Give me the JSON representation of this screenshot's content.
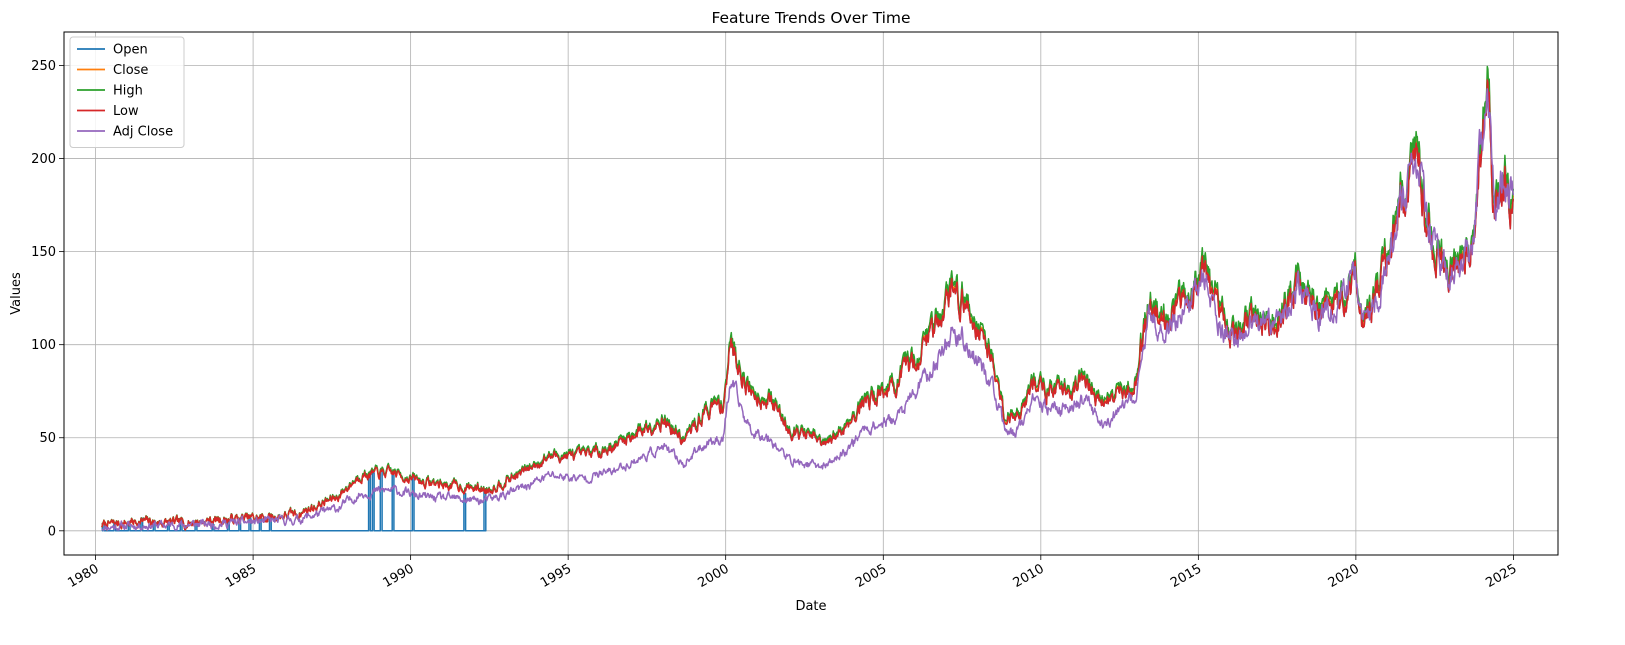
{
  "chart_data": {
    "type": "line",
    "title": "Feature Trends Over Time",
    "xlabel": "Date",
    "ylabel": "Values",
    "xlim": [
      "1979-01-01",
      "2026-06-01"
    ],
    "ylim": [
      -13,
      268
    ],
    "x_ticks": [
      "1980",
      "1985",
      "1990",
      "1995",
      "2000",
      "2005",
      "2010",
      "2015",
      "2020",
      "2025"
    ],
    "y_ticks": [
      0,
      50,
      100,
      150,
      200,
      250
    ],
    "grid": true,
    "legend_position": "top-left",
    "x_tick_rotation": 30,
    "series": [
      {
        "name": "Open",
        "color": "#1f77b4",
        "note_style": "mostly zero until 1992 with spikes to price level",
        "spike_dates": [
          "1980-03-20",
          "1980-08-01",
          "1981-01-15",
          "1981-06-10",
          "1981-11-01",
          "1982-04-15",
          "1982-09-10",
          "1983-03-01",
          "1983-09-15",
          "1984-03-10",
          "1984-07-20",
          "1984-11-15",
          "1985-03-15",
          "1985-07-10",
          "1988-09-01",
          "1988-10-15",
          "1989-01-15",
          "1989-06-01",
          "1990-01-20",
          "1991-09-10",
          "1992-05-01"
        ],
        "zero_until": "1992-05-01",
        "follows_series_after": "Low"
      },
      {
        "name": "Close",
        "color": "#ff7f0e",
        "follows_series": "Low"
      },
      {
        "name": "High",
        "color": "#2ca02c",
        "follows_series": "Low"
      },
      {
        "name": "Low",
        "color": "#d62728",
        "x": [
          "1980-03-17",
          "1981-06-01",
          "1982-08-01",
          "1984-01-01",
          "1985-06-01",
          "1986-06-01",
          "1987-09-01",
          "1988-06-01",
          "1989-06-01",
          "1990-06-01",
          "1991-06-01",
          "1992-06-01",
          "1993-06-01",
          "1994-06-01",
          "1995-06-01",
          "1996-06-01",
          "1997-06-01",
          "1998-01-01",
          "1998-09-01",
          "1999-06-01",
          "1999-12-01",
          "2000-03-01",
          "2000-10-01",
          "2001-06-01",
          "2002-01-01",
          "2002-10-01",
          "2003-03-01",
          "2003-10-01",
          "2004-06-01",
          "2005-06-01",
          "2006-03-01",
          "2006-10-01",
          "2007-03-01",
          "2007-10-01",
          "2008-06-01",
          "2008-11-01",
          "2009-03-01",
          "2009-10-01",
          "2010-06-01",
          "2011-06-01",
          "2011-12-01",
          "2012-06-01",
          "2013-01-01",
          "2013-06-01",
          "2014-01-01",
          "2014-06-01",
          "2015-03-01",
          "2015-09-01",
          "2016-03-01",
          "2016-10-01",
          "2017-06-01",
          "2018-03-01",
          "2018-10-01",
          "2019-06-01",
          "2020-01-01",
          "2020-03-20",
          "2020-10-01",
          "2021-06-01",
          "2022-01-01",
          "2022-04-01",
          "2022-10-01",
          "2023-04-01",
          "2023-10-01",
          "2024-03-01",
          "2024-06-01",
          "2024-09-01",
          "2024-12-31"
        ],
        "y": [
          3,
          5,
          4,
          6,
          7,
          9,
          18,
          30,
          31,
          26,
          24,
          22,
          30,
          40,
          40,
          45,
          55,
          60,
          48,
          65,
          68,
          100,
          75,
          70,
          55,
          50,
          45,
          55,
          70,
          78,
          95,
          115,
          130,
          118,
          95,
          62,
          60,
          78,
          75,
          80,
          68,
          72,
          80,
          120,
          115,
          120,
          140,
          115,
          105,
          115,
          110,
          130,
          120,
          120,
          140,
          110,
          130,
          175,
          195,
          165,
          140,
          140,
          160,
          245,
          170,
          190,
          175
        ]
      },
      {
        "name": "Adj Close",
        "color": "#9467bd",
        "x": [
          "1980-03-17",
          "1981-06-01",
          "1982-08-01",
          "1984-01-01",
          "1985-06-01",
          "1986-06-01",
          "1987-09-01",
          "1988-06-01",
          "1989-06-01",
          "1990-06-01",
          "1991-06-01",
          "1992-06-01",
          "1993-06-01",
          "1994-06-01",
          "1995-06-01",
          "1996-06-01",
          "1997-06-01",
          "1998-01-01",
          "1998-09-01",
          "1999-06-01",
          "1999-12-01",
          "2000-03-01",
          "2000-10-01",
          "2001-06-01",
          "2002-01-01",
          "2002-10-01",
          "2003-03-01",
          "2003-10-01",
          "2004-06-01",
          "2005-06-01",
          "2006-03-01",
          "2006-10-01",
          "2007-03-01",
          "2007-10-01",
          "2008-06-01",
          "2008-11-01",
          "2009-03-01",
          "2009-10-01",
          "2010-06-01",
          "2011-06-01",
          "2011-12-01",
          "2012-06-01",
          "2013-01-01",
          "2013-06-01",
          "2014-01-01",
          "2014-06-01",
          "2015-03-01",
          "2015-09-01",
          "2016-03-01",
          "2016-10-01",
          "2017-06-01",
          "2018-03-01",
          "2018-10-01",
          "2019-06-01",
          "2020-01-01",
          "2020-03-20",
          "2020-10-01",
          "2021-06-01",
          "2022-01-01",
          "2022-04-01",
          "2022-10-01",
          "2023-04-01",
          "2023-10-01",
          "2024-03-01",
          "2024-06-01",
          "2024-09-01",
          "2024-12-31"
        ],
        "y": [
          2,
          3,
          3,
          4,
          5,
          6,
          12,
          20,
          22,
          18,
          17,
          16,
          22,
          30,
          28,
          32,
          40,
          45,
          36,
          48,
          50,
          80,
          55,
          50,
          38,
          35,
          35,
          42,
          55,
          60,
          78,
          92,
          108,
          98,
          80,
          55,
          52,
          68,
          65,
          70,
          58,
          62,
          72,
          112,
          110,
          115,
          135,
          112,
          100,
          112,
          108,
          130,
          118,
          118,
          140,
          110,
          128,
          175,
          195,
          165,
          138,
          140,
          160,
          248,
          172,
          190,
          178
        ]
      }
    ]
  }
}
